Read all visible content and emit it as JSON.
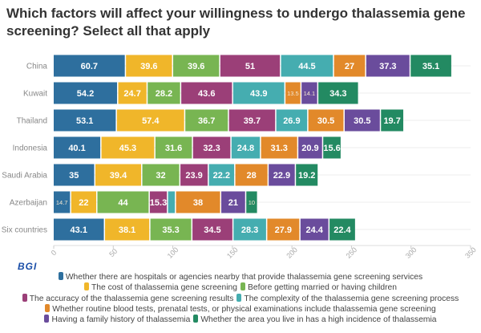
{
  "chart_data": {
    "type": "bar",
    "orientation": "horizontal",
    "stacked": true,
    "title": "Which factors will affect your willingness to undergo thalassemia gene screening? Select all that apply",
    "categories": [
      "China",
      "Kuwait",
      "Thailand",
      "Indonesia",
      "Saudi Arabia",
      "Azerbaijan",
      "Six countries"
    ],
    "xlim": [
      0,
      350
    ],
    "xticks": [
      "0",
      "50",
      "100",
      "150",
      "200",
      "250",
      "300",
      "350"
    ],
    "grid": true,
    "legend_position": "bottom",
    "series": [
      {
        "name": "Whether there are hospitals or agencies nearby that provide thalassemia gene screening services",
        "color": "#2e6f9e",
        "values": [
          60.7,
          54.2,
          53.1,
          40.1,
          35,
          14.7,
          43.1
        ]
      },
      {
        "name": "The cost of thalassemia gene screening",
        "color": "#f0b62a",
        "values": [
          39.6,
          24.7,
          57.4,
          45.3,
          39.4,
          22,
          38.1
        ]
      },
      {
        "name": "Before getting married or having children",
        "color": "#78b552",
        "values": [
          39.6,
          28.2,
          36.7,
          31.6,
          32,
          44,
          35.3
        ]
      },
      {
        "name": "The accuracy of the thalassemia gene screening results",
        "color": "#9b3f78",
        "values": [
          51,
          43.6,
          39.7,
          32.3,
          23.9,
          15.3,
          34.5
        ]
      },
      {
        "name": "The complexity of the thalassemia gene screening process",
        "color": "#45adb0",
        "values": [
          44.5,
          43.9,
          26.9,
          24.8,
          22.2,
          6.7,
          28.3
        ]
      },
      {
        "name": "Whether routine blood tests, prenatal tests, or physical examinations include thalassemia gene screening",
        "color": "#e2892a",
        "values": [
          27,
          13.5,
          30.5,
          31.3,
          28,
          38,
          27.9
        ]
      },
      {
        "name": "Having a family history of thalassemia",
        "color": "#6a4c9c",
        "values": [
          37.3,
          14.1,
          30.5,
          20.9,
          22.9,
          21,
          24.4
        ]
      },
      {
        "name": "Whether the area you live in has a high incidence of thalassemia",
        "color": "#238a62",
        "values": [
          35.1,
          34.3,
          19.7,
          15.6,
          19.2,
          10,
          22.4
        ]
      }
    ]
  },
  "logo": "BGI",
  "legend_lines": [
    [
      0
    ],
    [
      1,
      2
    ],
    [
      3,
      4
    ],
    [
      5
    ],
    [
      6,
      7
    ]
  ]
}
